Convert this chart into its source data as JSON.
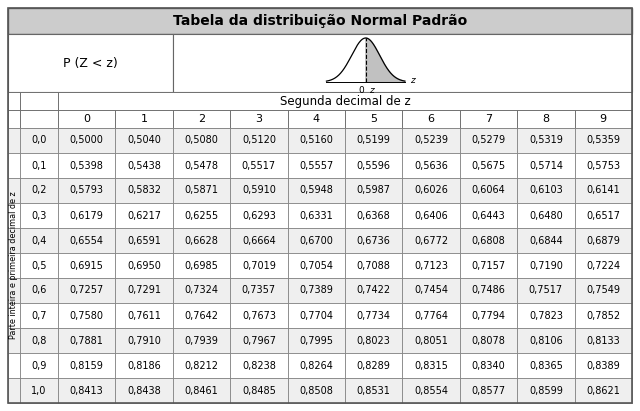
{
  "title": "Tabela da distribuição Normal Padrão",
  "p_label": "P (Z < z)",
  "second_decimal_label": "Segunda decimal de z",
  "row_label": "Parte inteira e primeira decimal de z",
  "col_headers": [
    "0",
    "1",
    "2",
    "3",
    "4",
    "5",
    "6",
    "7",
    "8",
    "9"
  ],
  "row_headers": [
    "0,0",
    "0,1",
    "0,2",
    "0,3",
    "0,4",
    "0,5",
    "0,6",
    "0,7",
    "0,8",
    "0,9",
    "1,0"
  ],
  "table_data": [
    [
      "0,5000",
      "0,5040",
      "0,5080",
      "0,5120",
      "0,5160",
      "0,5199",
      "0,5239",
      "0,5279",
      "0,5319",
      "0,5359"
    ],
    [
      "0,5398",
      "0,5438",
      "0,5478",
      "0,5517",
      "0,5557",
      "0,5596",
      "0,5636",
      "0,5675",
      "0,5714",
      "0,5753"
    ],
    [
      "0,5793",
      "0,5832",
      "0,5871",
      "0,5910",
      "0,5948",
      "0,5987",
      "0,6026",
      "0,6064",
      "0,6103",
      "0,6141"
    ],
    [
      "0,6179",
      "0,6217",
      "0,6255",
      "0,6293",
      "0,6331",
      "0,6368",
      "0,6406",
      "0,6443",
      "0,6480",
      "0,6517"
    ],
    [
      "0,6554",
      "0,6591",
      "0,6628",
      "0,6664",
      "0,6700",
      "0,6736",
      "0,6772",
      "0,6808",
      "0,6844",
      "0,6879"
    ],
    [
      "0,6915",
      "0,6950",
      "0,6985",
      "0,7019",
      "0,7054",
      "0,7088",
      "0,7123",
      "0,7157",
      "0,7190",
      "0,7224"
    ],
    [
      "0,7257",
      "0,7291",
      "0,7324",
      "0,7357",
      "0,7389",
      "0,7422",
      "0,7454",
      "0,7486",
      "0,7517",
      "0,7549"
    ],
    [
      "0,7580",
      "0,7611",
      "0,7642",
      "0,7673",
      "0,7704",
      "0,7734",
      "0,7764",
      "0,7794",
      "0,7823",
      "0,7852"
    ],
    [
      "0,7881",
      "0,7910",
      "0,7939",
      "0,7967",
      "0,7995",
      "0,8023",
      "0,8051",
      "0,8078",
      "0,8106",
      "0,8133"
    ],
    [
      "0,8159",
      "0,8186",
      "0,8212",
      "0,8238",
      "0,8264",
      "0,8289",
      "0,8315",
      "0,8340",
      "0,8365",
      "0,8389"
    ],
    [
      "0,8413",
      "0,8438",
      "0,8461",
      "0,8485",
      "0,8508",
      "0,8531",
      "0,8554",
      "0,8577",
      "0,8599",
      "0,8621"
    ]
  ],
  "header_bg": "#cccccc",
  "row_bg_alt1": "#efefef",
  "row_bg_alt2": "#ffffff",
  "title_fontsize": 10,
  "cell_fontsize": 7,
  "header_fontsize": 8,
  "second_decimal_fontsize": 8.5,
  "p_label_fontsize": 9
}
